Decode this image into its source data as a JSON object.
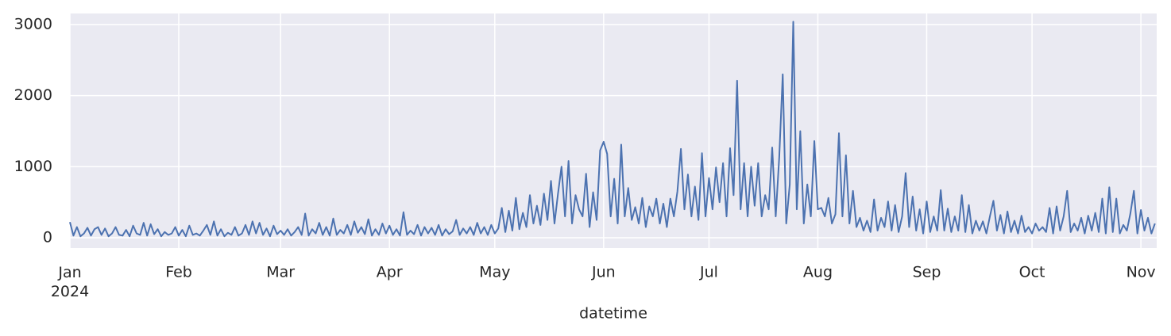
{
  "chart_data": {
    "type": "line",
    "x_label": "datetime",
    "color": "#4c72b0",
    "grid": true,
    "xlim": [
      0,
      309.5
    ],
    "ylim": [
      -145,
      3156
    ],
    "xticks": [
      {
        "value": 0,
        "label": "Jan\n2024"
      },
      {
        "value": 31,
        "label": "Feb"
      },
      {
        "value": 60,
        "label": "Mar"
      },
      {
        "value": 91,
        "label": "Apr"
      },
      {
        "value": 121,
        "label": "May"
      },
      {
        "value": 152,
        "label": "Jun"
      },
      {
        "value": 182,
        "label": "Jul"
      },
      {
        "value": 213,
        "label": "Aug"
      },
      {
        "value": 244,
        "label": "Sep"
      },
      {
        "value": 274,
        "label": "Oct"
      },
      {
        "value": 305,
        "label": "Nov"
      }
    ],
    "yticks": [
      0,
      1000,
      2000,
      3000
    ],
    "x": [
      0,
      1,
      2,
      3,
      4,
      5,
      6,
      7,
      8,
      9,
      10,
      11,
      12,
      13,
      14,
      15,
      16,
      17,
      18,
      19,
      20,
      21,
      22,
      23,
      24,
      25,
      26,
      27,
      28,
      29,
      30,
      31,
      32,
      33,
      34,
      35,
      36,
      37,
      38,
      39,
      40,
      41,
      42,
      43,
      44,
      45,
      46,
      47,
      48,
      49,
      50,
      51,
      52,
      53,
      54,
      55,
      56,
      57,
      58,
      59,
      60,
      61,
      62,
      63,
      64,
      65,
      66,
      67,
      68,
      69,
      70,
      71,
      72,
      73,
      74,
      75,
      76,
      77,
      78,
      79,
      80,
      81,
      82,
      83,
      84,
      85,
      86,
      87,
      88,
      89,
      90,
      91,
      92,
      93,
      94,
      95,
      96,
      97,
      98,
      99,
      100,
      101,
      102,
      103,
      104,
      105,
      106,
      107,
      108,
      109,
      110,
      111,
      112,
      113,
      114,
      115,
      116,
      117,
      118,
      119,
      120,
      121,
      122,
      123,
      124,
      125,
      126,
      127,
      128,
      129,
      130,
      131,
      132,
      133,
      134,
      135,
      136,
      137,
      138,
      139,
      140,
      141,
      142,
      143,
      144,
      145,
      146,
      147,
      148,
      149,
      150,
      151,
      152,
      153,
      154,
      155,
      156,
      157,
      158,
      159,
      160,
      161,
      162,
      163,
      164,
      165,
      166,
      167,
      168,
      169,
      170,
      171,
      172,
      173,
      174,
      175,
      176,
      177,
      178,
      179,
      180,
      181,
      182,
      183,
      184,
      185,
      186,
      187,
      188,
      189,
      190,
      191,
      192,
      193,
      194,
      195,
      196,
      197,
      198,
      199,
      200,
      201,
      202,
      203,
      204,
      205,
      206,
      207,
      208,
      209,
      210,
      211,
      212,
      213,
      214,
      215,
      216,
      217,
      218,
      219,
      220,
      221,
      222,
      223,
      224,
      225,
      226,
      227,
      228,
      229,
      230,
      231,
      232,
      233,
      234,
      235,
      236,
      237,
      238,
      239,
      240,
      241,
      242,
      243,
      244,
      245,
      246,
      247,
      248,
      249,
      250,
      251,
      252,
      253,
      254,
      255,
      256,
      257,
      258,
      259,
      260,
      261,
      262,
      263,
      264,
      265,
      266,
      267,
      268,
      269,
      270,
      271,
      272,
      273,
      274,
      275,
      276,
      277,
      278,
      279,
      280,
      281,
      282,
      283,
      284,
      285,
      286,
      287,
      288,
      289,
      290,
      291,
      292,
      293,
      294,
      295,
      296,
      297,
      298,
      299,
      300,
      301,
      302,
      303,
      304,
      305,
      306,
      307,
      308,
      309
    ],
    "values": [
      220,
      30,
      150,
      20,
      60,
      140,
      30,
      120,
      150,
      40,
      130,
      20,
      60,
      150,
      40,
      30,
      110,
      20,
      170,
      60,
      40,
      210,
      30,
      190,
      50,
      120,
      20,
      80,
      40,
      60,
      150,
      30,
      110,
      20,
      170,
      40,
      60,
      30,
      100,
      180,
      40,
      230,
      30,
      120,
      20,
      70,
      40,
      150,
      30,
      60,
      180,
      40,
      230,
      60,
      210,
      40,
      130,
      20,
      170,
      50,
      100,
      40,
      120,
      30,
      80,
      150,
      40,
      340,
      30,
      120,
      60,
      210,
      40,
      150,
      30,
      270,
      40,
      110,
      60,
      180,
      40,
      230,
      70,
      150,
      50,
      260,
      30,
      120,
      40,
      200,
      60,
      170,
      40,
      120,
      30,
      360,
      40,
      100,
      50,
      180,
      30,
      150,
      60,
      140,
      40,
      180,
      30,
      120,
      50,
      90,
      250,
      40,
      130,
      60,
      150,
      40,
      210,
      60,
      150,
      40,
      180,
      60,
      130,
      420,
      80,
      380,
      100,
      560,
      120,
      350,
      150,
      600,
      200,
      450,
      180,
      620,
      250,
      800,
      200,
      620,
      1000,
      300,
      1080,
      200,
      600,
      400,
      300,
      900,
      150,
      640,
      250,
      1230,
      1350,
      1180,
      300,
      830,
      200,
      1310,
      300,
      700,
      250,
      430,
      200,
      560,
      150,
      440,
      300,
      550,
      200,
      480,
      150,
      550,
      300,
      650,
      1250,
      400,
      890,
      300,
      720,
      250,
      1190,
      300,
      840,
      400,
      990,
      500,
      1050,
      300,
      1260,
      600,
      2210,
      400,
      1050,
      300,
      1000,
      450,
      1050,
      300,
      600,
      400,
      1270,
      300,
      1130,
      2300,
      200,
      750,
      3040,
      400,
      1500,
      200,
      750,
      300,
      1360,
      400,
      420,
      300,
      560,
      200,
      330,
      1470,
      300,
      1160,
      200,
      660,
      150,
      280,
      100,
      240,
      80,
      540,
      100,
      280,
      150,
      510,
      100,
      460,
      80,
      300,
      910,
      150,
      580,
      100,
      400,
      60,
      510,
      80,
      300,
      100,
      670,
      100,
      410,
      80,
      300,
      100,
      600,
      80,
      460,
      60,
      240,
      100,
      230,
      60,
      300,
      520,
      100,
      320,
      60,
      370,
      80,
      240,
      60,
      310,
      80,
      150,
      60,
      200,
      100,
      150,
      80,
      420,
      60,
      440,
      100,
      300,
      660,
      80,
      200,
      100,
      280,
      60,
      310,
      100,
      350,
      80,
      550,
      60,
      710,
      80,
      550,
      60,
      180,
      100,
      340,
      660,
      60,
      390,
      100,
      280,
      60,
      200
    ]
  }
}
